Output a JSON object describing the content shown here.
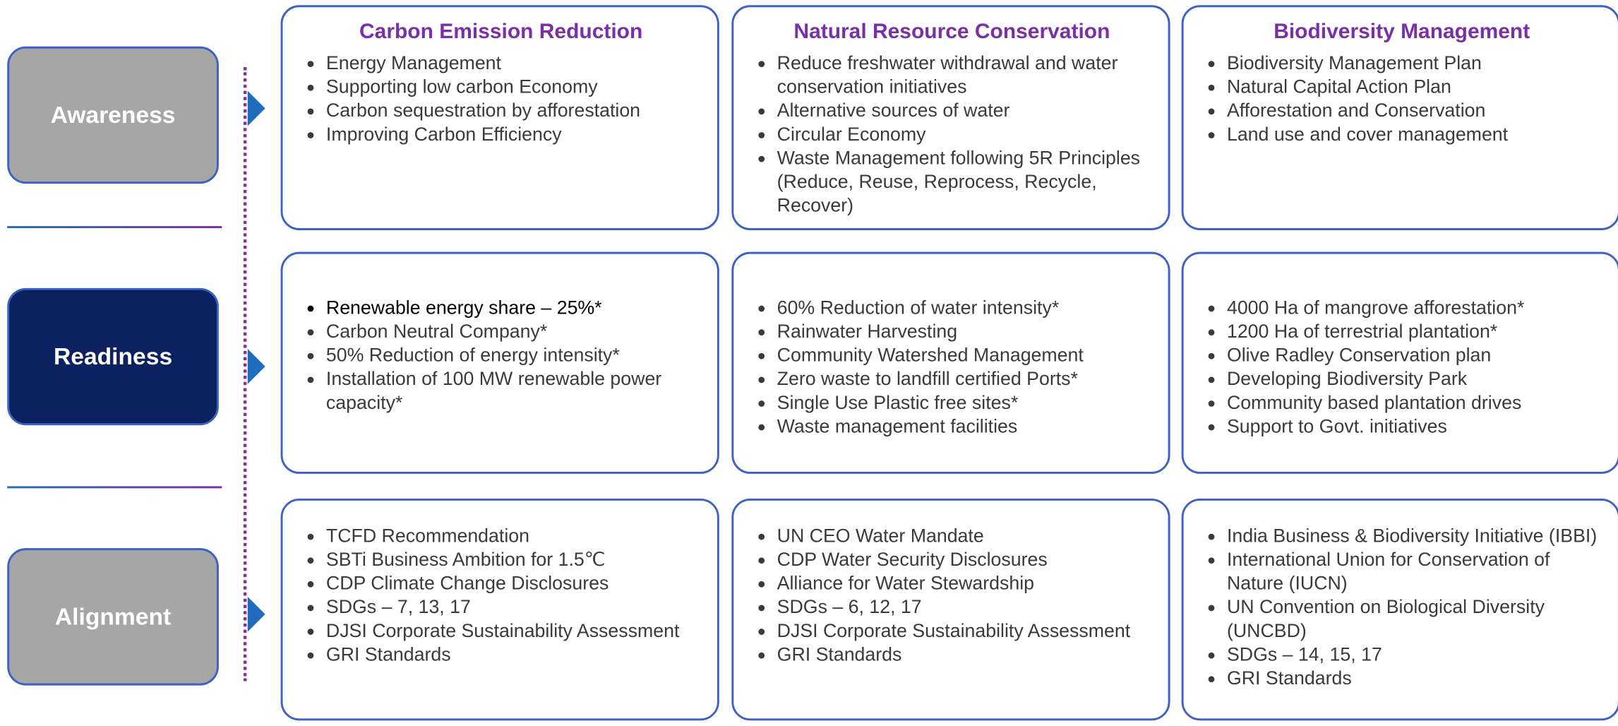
{
  "stages": [
    "Awareness",
    "Readiness",
    "Alignment"
  ],
  "themes": [
    "Carbon Emission Reduction",
    "Natural Resource Conservation",
    "Biodiversity Management"
  ],
  "cells": [
    [
      [
        "Energy Management",
        "Supporting low carbon Economy",
        "Carbon sequestration by afforestation",
        "Improving Carbon Efficiency"
      ],
      [
        "Reduce freshwater withdrawal and water conservation initiatives",
        "Alternative sources of water",
        "Circular Economy",
        "Waste Management following 5R Principles (Reduce, Reuse, Reprocess, Recycle, Recover)"
      ],
      [
        "Biodiversity Management Plan",
        "Natural Capital Action Plan",
        "Afforestation and Conservation",
        "Land use and cover management"
      ]
    ],
    [
      [
        "Renewable energy share – 25%*",
        "Carbon Neutral Company*",
        "50% Reduction of energy intensity*",
        "Installation of 100 MW renewable power capacity*"
      ],
      [
        "60% Reduction of water intensity*",
        "Rainwater Harvesting",
        "Community Watershed Management",
        "Zero waste to landfill certified Ports*",
        "Single Use Plastic free sites*",
        "Waste management facilities"
      ],
      [
        "4000 Ha of mangrove afforestation*",
        "1200 Ha of terrestrial plantation*",
        "Olive Radley Conservation plan",
        "Developing Biodiversity Park",
        "Community based plantation drives",
        "Support to Govt. initiatives"
      ]
    ],
    [
      [
        "TCFD Recommendation",
        "SBTi Business Ambition for 1.5℃",
        "CDP Climate Change Disclosures",
        "SDGs – 7, 13, 17",
        "DJSI Corporate Sustainability Assessment",
        "GRI Standards"
      ],
      [
        "UN CEO Water Mandate",
        "CDP Water Security Disclosures",
        "Alliance for Water Stewardship",
        "SDGs – 6, 12, 17",
        "DJSI Corporate Sustainability Assessment",
        "GRI Standards"
      ],
      [
        "India Business & Biodiversity Initiative (IBBI)",
        "International Union for Conservation of Nature (IUCN)",
        "UN Convention on Biological Diversity (UNCBD)",
        "SDGs – 14, 15, 17",
        "GRI Standards"
      ]
    ]
  ]
}
